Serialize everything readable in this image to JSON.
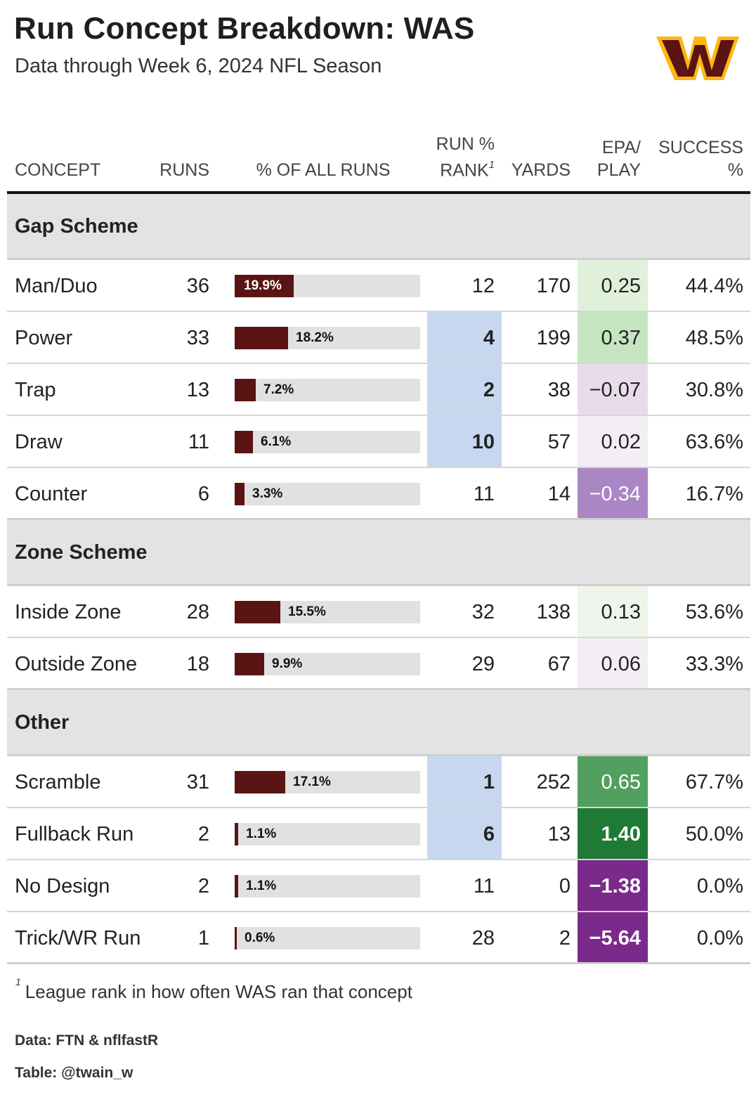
{
  "title": "Run Concept Breakdown: WAS",
  "subtitle": "Data through Week 6, 2024 NFL Season",
  "logo": {
    "name": "washington-commanders-w-logo",
    "colors": {
      "primary": "#5a1414",
      "accent": "#ffb612"
    }
  },
  "colors": {
    "bar": "#5a1414",
    "bar_track": "#e1e1e1",
    "rank_highlight": "#c6d7ef",
    "group_bg": "#e3e3e3"
  },
  "headers": {
    "concept": "CONCEPT",
    "runs": "RUNS",
    "pct": "% OF ALL RUNS",
    "rank_line1": "RUN %",
    "rank_line2": "RANK",
    "rank_footnote_mark": "1",
    "yards": "YARDS",
    "epa_line1": "EPA/",
    "epa_line2": "PLAY",
    "succ_line1": "SUCCESS",
    "succ_line2": "%"
  },
  "chart_data": {
    "type": "table",
    "groups": [
      {
        "name": "Gap Scheme",
        "rows": [
          {
            "concept": "Man/Duo",
            "runs": "36",
            "pct": 19.9,
            "pct_label": "19.9%",
            "rank": "12",
            "rank_hl": false,
            "yards": "170",
            "epa": 0.25,
            "epa_label": "0.25",
            "succ": "44.4%"
          },
          {
            "concept": "Power",
            "runs": "33",
            "pct": 18.2,
            "pct_label": "18.2%",
            "rank": "4",
            "rank_hl": true,
            "yards": "199",
            "epa": 0.37,
            "epa_label": "0.37",
            "succ": "48.5%"
          },
          {
            "concept": "Trap",
            "runs": "13",
            "pct": 7.2,
            "pct_label": "7.2%",
            "rank": "2",
            "rank_hl": true,
            "yards": "38",
            "epa": -0.07,
            "epa_label": "−0.07",
            "succ": "30.8%"
          },
          {
            "concept": "Draw",
            "runs": "11",
            "pct": 6.1,
            "pct_label": "6.1%",
            "rank": "10",
            "rank_hl": true,
            "yards": "57",
            "epa": 0.02,
            "epa_label": "0.02",
            "succ": "63.6%"
          },
          {
            "concept": "Counter",
            "runs": "6",
            "pct": 3.3,
            "pct_label": "3.3%",
            "rank": "11",
            "rank_hl": false,
            "yards": "14",
            "epa": -0.34,
            "epa_label": "−0.34",
            "succ": "16.7%"
          }
        ]
      },
      {
        "name": "Zone Scheme",
        "rows": [
          {
            "concept": "Inside Zone",
            "runs": "28",
            "pct": 15.5,
            "pct_label": "15.5%",
            "rank": "32",
            "rank_hl": false,
            "yards": "138",
            "epa": 0.13,
            "epa_label": "0.13",
            "succ": "53.6%"
          },
          {
            "concept": "Outside Zone",
            "runs": "18",
            "pct": 9.9,
            "pct_label": "9.9%",
            "rank": "29",
            "rank_hl": false,
            "yards": "67",
            "epa": 0.06,
            "epa_label": "0.06",
            "succ": "33.3%"
          }
        ]
      },
      {
        "name": "Other",
        "rows": [
          {
            "concept": "Scramble",
            "runs": "31",
            "pct": 17.1,
            "pct_label": "17.1%",
            "rank": "1",
            "rank_hl": true,
            "yards": "252",
            "epa": 0.65,
            "epa_label": "0.65",
            "succ": "67.7%"
          },
          {
            "concept": "Fullback Run",
            "runs": "2",
            "pct": 1.1,
            "pct_label": "1.1%",
            "rank": "6",
            "rank_hl": true,
            "yards": "13",
            "epa": 1.4,
            "epa_label": "1.40",
            "succ": "50.0%"
          },
          {
            "concept": "No Design",
            "runs": "2",
            "pct": 1.1,
            "pct_label": "1.1%",
            "rank": "11",
            "rank_hl": false,
            "yards": "0",
            "epa": -1.38,
            "epa_label": "−1.38",
            "succ": "0.0%"
          },
          {
            "concept": "Trick/WR Run",
            "runs": "1",
            "pct": 0.6,
            "pct_label": "0.6%",
            "rank": "28",
            "rank_hl": false,
            "yards": "2",
            "epa": -5.64,
            "epa_label": "−5.64",
            "succ": "0.0%"
          }
        ]
      }
    ]
  },
  "footnote": {
    "mark": "1",
    "text": "League rank in how often WAS ran that concept"
  },
  "credits": {
    "data": "Data: FTN & nflfastR",
    "table": "Table: @twain_w"
  }
}
